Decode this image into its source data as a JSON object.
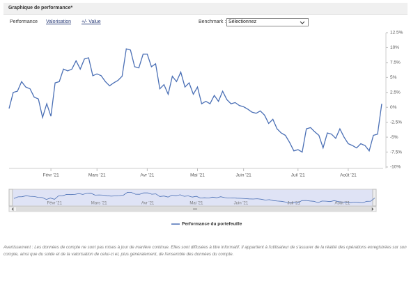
{
  "header": {
    "title": "Graphique de performance*"
  },
  "toolbar": {
    "tabs": [
      "Performance",
      "Valorisation",
      "+/- Value"
    ],
    "benchmark_label": "Benchmark :",
    "benchmark_select": "Sélectionnez"
  },
  "chart_data": {
    "type": "line",
    "categories": [
      null,
      null,
      null,
      null,
      null,
      null,
      null,
      null,
      null,
      null,
      "Févr '21",
      null,
      null,
      null,
      null,
      null,
      null,
      null,
      null,
      null,
      null,
      "Mars '21",
      null,
      null,
      null,
      null,
      null,
      null,
      null,
      null,
      null,
      null,
      null,
      "Avr '21",
      null,
      null,
      null,
      null,
      null,
      null,
      null,
      null,
      null,
      null,
      null,
      "Mai '21",
      null,
      null,
      null,
      null,
      null,
      null,
      null,
      null,
      null,
      null,
      "Juin '21",
      null,
      null,
      null,
      null,
      null,
      null,
      null,
      null,
      null,
      null,
      null,
      null,
      "Juil '21",
      null,
      null,
      null,
      null,
      null,
      null,
      null,
      null,
      null,
      null,
      null,
      "Août '21",
      null,
      null,
      null,
      null,
      null,
      null,
      null,
      null
    ],
    "series": [
      {
        "name": "Performance du portefeuille",
        "color": "#4a6fb5",
        "values": [
          -0.2,
          2.5,
          2.7,
          4.3,
          3.4,
          3.1,
          1.7,
          1.4,
          -1.7,
          0.6,
          -1.5,
          4.1,
          4.3,
          6.4,
          6.1,
          6.4,
          7.8,
          6.4,
          8.1,
          8.3,
          5.3,
          5.6,
          5.3,
          4.3,
          3.6,
          4.1,
          4.5,
          5.2,
          9.8,
          9.6,
          6.8,
          6.6,
          8.9,
          8.9,
          6.8,
          7.3,
          3.1,
          3.8,
          2.2,
          5.2,
          4.3,
          5.9,
          3.4,
          4.1,
          2.2,
          3.4,
          0.6,
          1.0,
          0.6,
          2.0,
          1.0,
          2.7,
          1.3,
          0.6,
          0.8,
          0.3,
          0.1,
          -0.3,
          -0.8,
          -1.0,
          -0.6,
          -1.3,
          -2.7,
          -2.0,
          -3.6,
          -4.3,
          -4.7,
          -5.9,
          -7.3,
          -7.1,
          -7.5,
          -3.6,
          -3.4,
          -4.1,
          -4.7,
          -6.8,
          -4.3,
          -4.5,
          -5.2,
          -3.6,
          -5.0,
          -6.1,
          -6.4,
          -6.8,
          -6.1,
          -6.4,
          -7.3,
          -4.7,
          -4.5,
          0.6
        ]
      }
    ],
    "ylim": [
      -10,
      12.5
    ],
    "yticks": [
      {
        "value": -10,
        "label": "-10%"
      },
      {
        "value": -7.5,
        "label": "-7.5%"
      },
      {
        "value": -5,
        "label": "-5%"
      },
      {
        "value": -2.5,
        "label": "-2.5%"
      },
      {
        "value": 0,
        "label": "0%"
      },
      {
        "value": 2.5,
        "label": "2.5%"
      },
      {
        "value": 5,
        "label": "5%"
      },
      {
        "value": 7.5,
        "label": "7.5%"
      },
      {
        "value": 10,
        "label": "10%"
      },
      {
        "value": 12.5,
        "label": "12.5%"
      }
    ],
    "y_axis_side": "right"
  },
  "disclaimer": "Avertissement : Les données de compte ne sont pas mises à jour de manière continue. Elles sont diffusées à titre informatif. Il appartient à l'utilisateur de s'assurer de la réalité des opérations enregistrées sur son compte, ainsi que du solde et de la valorisation de celui-ci et, plus généralement, de l'ensemble des données du compte."
}
